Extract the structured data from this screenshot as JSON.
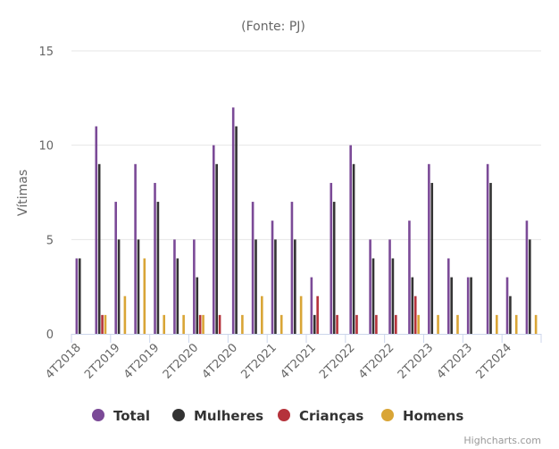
{
  "chart_data": {
    "type": "bar",
    "subtitle": "(Fonte: PJ)",
    "ylabel": "Vítimas",
    "ylim": [
      0,
      15
    ],
    "yticks": [
      0,
      5,
      10,
      15
    ],
    "grid": true,
    "legend_position": "bottom-center",
    "categories": [
      "4T2018",
      "1T2019",
      "2T2019",
      "3T2019",
      "4T2019",
      "1T2020",
      "2T2020",
      "3T2020",
      "4T2020",
      "1T2021",
      "2T2021",
      "3T2021",
      "4T2021",
      "1T2022",
      "2T2022",
      "3T2022",
      "4T2022",
      "1T2023",
      "2T2023",
      "3T2023",
      "4T2023",
      "1T2024",
      "2T2024",
      "3T2024"
    ],
    "xtick_labels": [
      "4T2018",
      "2T2019",
      "4T2019",
      "2T2020",
      "4T2020",
      "2T2021",
      "4T2021",
      "2T2022",
      "4T2022",
      "2T2023",
      "4T2023",
      "2T2024"
    ],
    "series": [
      {
        "name": "Total",
        "color": "#7b4a97",
        "values": [
          4,
          11,
          7,
          9,
          8,
          5,
          5,
          10,
          12,
          7,
          6,
          7,
          3,
          8,
          10,
          5,
          5,
          6,
          9,
          4,
          3,
          9,
          3,
          6
        ]
      },
      {
        "name": "Mulheres",
        "color": "#333333",
        "values": [
          4,
          9,
          5,
          5,
          7,
          4,
          3,
          9,
          11,
          5,
          5,
          5,
          1,
          7,
          9,
          4,
          4,
          3,
          8,
          3,
          3,
          8,
          2,
          5
        ]
      },
      {
        "name": "Crianças",
        "color": "#b5323b",
        "values": [
          0,
          1,
          0,
          0,
          0,
          0,
          1,
          1,
          0,
          0,
          0,
          0,
          2,
          1,
          1,
          1,
          1,
          2,
          0,
          0,
          0,
          0,
          0,
          0
        ]
      },
      {
        "name": "Homens",
        "color": "#d9a536",
        "values": [
          0,
          1,
          2,
          4,
          1,
          1,
          1,
          0,
          1,
          2,
          1,
          2,
          0,
          0,
          0,
          0,
          0,
          1,
          1,
          1,
          0,
          1,
          1,
          1
        ]
      }
    ]
  },
  "credits": "Highcharts.com"
}
